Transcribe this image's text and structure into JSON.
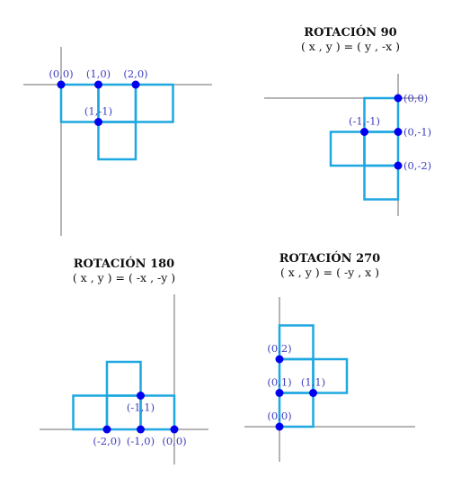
{
  "colors": {
    "shape": "#1ea7e1",
    "point": "#0000ee",
    "label": "#4040c0",
    "axis": "#6b6b6b"
  },
  "panels": [
    {
      "id": "original",
      "title": "",
      "formula": "",
      "cells": [
        [
          0,
          0
        ],
        [
          1,
          0
        ],
        [
          2,
          0
        ],
        [
          1,
          -1
        ]
      ],
      "points": [
        {
          "x": 0,
          "y": 0,
          "label": "(0,0)",
          "pos": "above"
        },
        {
          "x": 1,
          "y": 0,
          "label": "(1,0)",
          "pos": "above"
        },
        {
          "x": 2,
          "y": 0,
          "label": "(2,0)",
          "pos": "above"
        },
        {
          "x": 1,
          "y": -1,
          "label": "(1,-1)",
          "pos": "above"
        }
      ]
    },
    {
      "id": "rot90",
      "title": "ROTACIÓN 90",
      "formula": "( x , y ) = ( y , -x )",
      "cells": [
        [
          -1,
          0
        ],
        [
          -1,
          -1
        ],
        [
          -1,
          -2
        ],
        [
          -2,
          -1
        ]
      ],
      "points": [
        {
          "x": 0,
          "y": 0,
          "label": "(0,0)",
          "pos": "right"
        },
        {
          "x": 0,
          "y": -1,
          "label": "(0,-1)",
          "pos": "right"
        },
        {
          "x": 0,
          "y": -2,
          "label": "(0,-2)",
          "pos": "right"
        },
        {
          "x": -1,
          "y": -1,
          "label": "(-1,-1)",
          "pos": "above"
        }
      ]
    },
    {
      "id": "rot180",
      "title": "ROTACIÓN 180",
      "formula": "( x , y ) = ( -x , -y )",
      "cells": [
        [
          -3,
          1
        ],
        [
          -2,
          1
        ],
        [
          -1,
          1
        ],
        [
          -2,
          2
        ]
      ],
      "points": [
        {
          "x": 0,
          "y": 0,
          "label": "(0,0)",
          "pos": "below"
        },
        {
          "x": -1,
          "y": 0,
          "label": "(-1,0)",
          "pos": "below"
        },
        {
          "x": -2,
          "y": 0,
          "label": "(-2,0)",
          "pos": "below"
        },
        {
          "x": -1,
          "y": 1,
          "label": "(-1,1)",
          "pos": "below"
        }
      ]
    },
    {
      "id": "rot270",
      "title": "ROTACIÓN 270",
      "formula": "( x , y ) = ( -y , x )",
      "cells": [
        [
          0,
          1
        ],
        [
          0,
          2
        ],
        [
          0,
          3
        ],
        [
          1,
          2
        ]
      ],
      "points": [
        {
          "x": 0,
          "y": 0,
          "label": "(0,0)",
          "pos": "above"
        },
        {
          "x": 0,
          "y": 1,
          "label": "(0,1)",
          "pos": "above"
        },
        {
          "x": 0,
          "y": 2,
          "label": "(0,2)",
          "pos": "above"
        },
        {
          "x": 1,
          "y": 1,
          "label": "(1,1)",
          "pos": "above"
        }
      ]
    }
  ]
}
